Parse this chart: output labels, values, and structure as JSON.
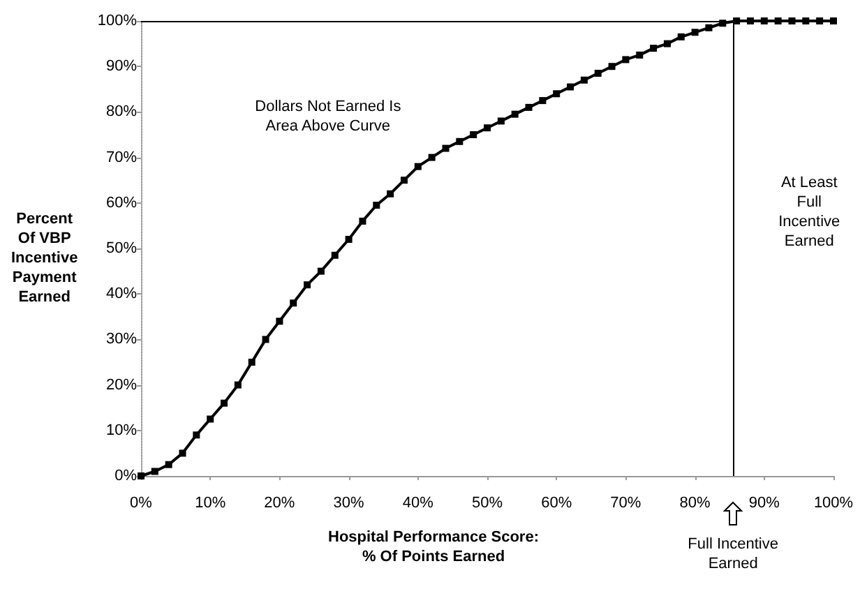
{
  "chart_data": {
    "type": "line",
    "xlabel": "Hospital Performance Score:\n% Of Points Earned",
    "ylabel": "Percent\nOf VBP\nIncentive\nPayment\nEarned",
    "annotations": [
      "Dollars Not Earned Is\nArea Above Curve",
      "At Least\nFull\nIncentive\nEarned"
    ],
    "x": [
      0,
      2,
      4,
      6,
      8,
      10,
      12,
      14,
      16,
      18,
      20,
      22,
      24,
      26,
      28,
      30,
      32,
      34,
      36,
      38,
      40,
      42,
      44,
      46,
      48,
      50,
      52,
      54,
      56,
      58,
      60,
      62,
      64,
      66,
      68,
      70,
      72,
      74,
      76,
      78,
      80,
      82,
      84,
      86,
      88,
      90,
      92,
      94,
      96,
      98,
      100
    ],
    "series": [
      {
        "color": "#000000",
        "values": [
          0,
          1,
          2.5,
          5,
          9,
          12.5,
          16,
          20,
          25,
          30,
          34,
          38,
          42,
          45,
          48.5,
          52,
          56,
          59.5,
          62,
          65,
          68,
          70,
          72,
          73.5,
          75,
          76.5,
          78,
          79.5,
          81,
          82.5,
          84,
          85.5,
          87,
          88.5,
          90,
          91.5,
          92.5,
          94,
          95,
          96.5,
          97.5,
          98.5,
          99.5,
          100,
          100,
          100,
          100,
          100,
          100,
          100,
          100
        ]
      }
    ],
    "xlim": [
      0,
      100
    ],
    "xticks": [
      {
        "value": 0,
        "label": "0%"
      },
      {
        "value": 10,
        "label": "10%"
      },
      {
        "value": 20,
        "label": "20%"
      },
      {
        "value": 30,
        "label": "30%"
      },
      {
        "value": 40,
        "label": "40%"
      },
      {
        "value": 50,
        "label": "50%"
      },
      {
        "value": 60,
        "label": "60%"
      },
      {
        "value": 70,
        "label": "70%"
      },
      {
        "value": 80,
        "label": "80%"
      },
      {
        "value": 90,
        "label": "90%"
      },
      {
        "value": 100,
        "label": "100%"
      }
    ],
    "ylim": [
      0,
      100
    ],
    "yticks": [
      {
        "value": 0,
        "label": "0%"
      },
      {
        "value": 10,
        "label": "10%"
      },
      {
        "value": 20,
        "label": "20%"
      },
      {
        "value": 30,
        "label": "30%"
      },
      {
        "value": 40,
        "label": "40%"
      },
      {
        "value": 50,
        "label": "50%"
      },
      {
        "value": 60,
        "label": "60%"
      },
      {
        "value": 70,
        "label": "70%"
      },
      {
        "value": 80,
        "label": "80%"
      },
      {
        "value": 90,
        "label": "90%"
      },
      {
        "value": 100,
        "label": "100%"
      }
    ],
    "ref_lines": [
      {
        "axis": "y",
        "value": 100,
        "label": null,
        "color": "#000000"
      },
      {
        "axis": "x",
        "value": 85.5,
        "label": "Full Incentive\nEarned",
        "color": "#000000"
      }
    ],
    "grid": false,
    "marker": "square",
    "line_style": "solid"
  }
}
